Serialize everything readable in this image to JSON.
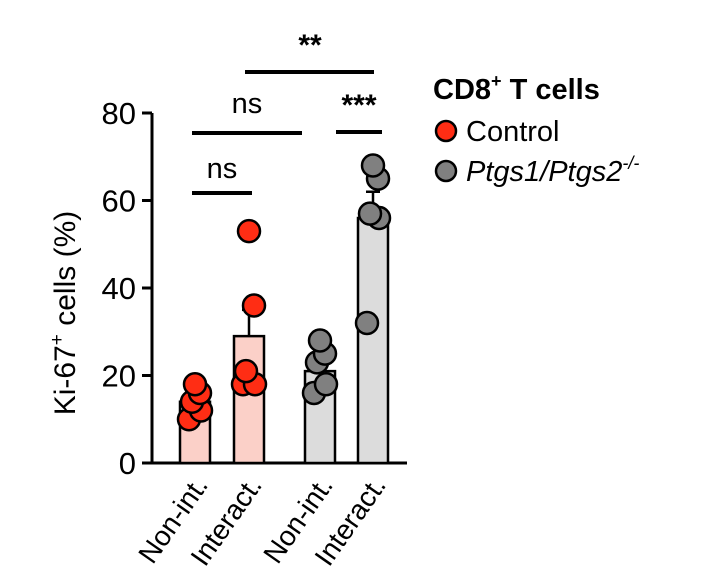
{
  "chart_data": {
    "type": "bar",
    "ylabel": "Ki-67",
    "ylabel_sup": "+",
    "ylabel_suffix": " cells (%)",
    "ylim": [
      0,
      80
    ],
    "yticks": [
      0,
      20,
      40,
      60,
      80
    ],
    "categories": [
      "Non-int.",
      "Interact.",
      "Non-int.",
      "Interact."
    ],
    "bars": [
      {
        "mean": 14,
        "sem": 2,
        "group": "Control",
        "points": [
          10,
          12,
          14,
          16,
          18
        ]
      },
      {
        "mean": 29,
        "sem": 6,
        "group": "Control",
        "points": [
          18,
          18,
          21,
          36,
          53
        ]
      },
      {
        "mean": 21,
        "sem": 3,
        "group": "Ptgs1/Ptgs2-/-",
        "points": [
          16,
          18,
          23,
          25,
          28
        ]
      },
      {
        "mean": 56,
        "sem": 6,
        "group": "Ptgs1/Ptgs2-/-",
        "points": [
          32,
          56,
          57,
          65,
          68
        ]
      }
    ],
    "legend": {
      "title": "CD8",
      "title_sup": "+",
      "title_suffix": " T cells",
      "items": [
        {
          "label": "Control",
          "color": "#ff2d14"
        },
        {
          "label": "Ptgs1/Ptgs2",
          "sup": "-/-",
          "italic": true,
          "color": "#808080"
        }
      ]
    },
    "significance": [
      {
        "label": "ns",
        "from": 0,
        "to": 1
      },
      {
        "label": "ns",
        "from": 0,
        "to": 2
      },
      {
        "label": "***",
        "from": 3,
        "to": 3
      },
      {
        "label": "**",
        "from": 1,
        "to": 3
      }
    ],
    "colors": {
      "control_point": "#ff2d14",
      "control_bar": "#fbd0c8",
      "ko_point": "#808080",
      "ko_bar": "#dcdcdc"
    }
  }
}
